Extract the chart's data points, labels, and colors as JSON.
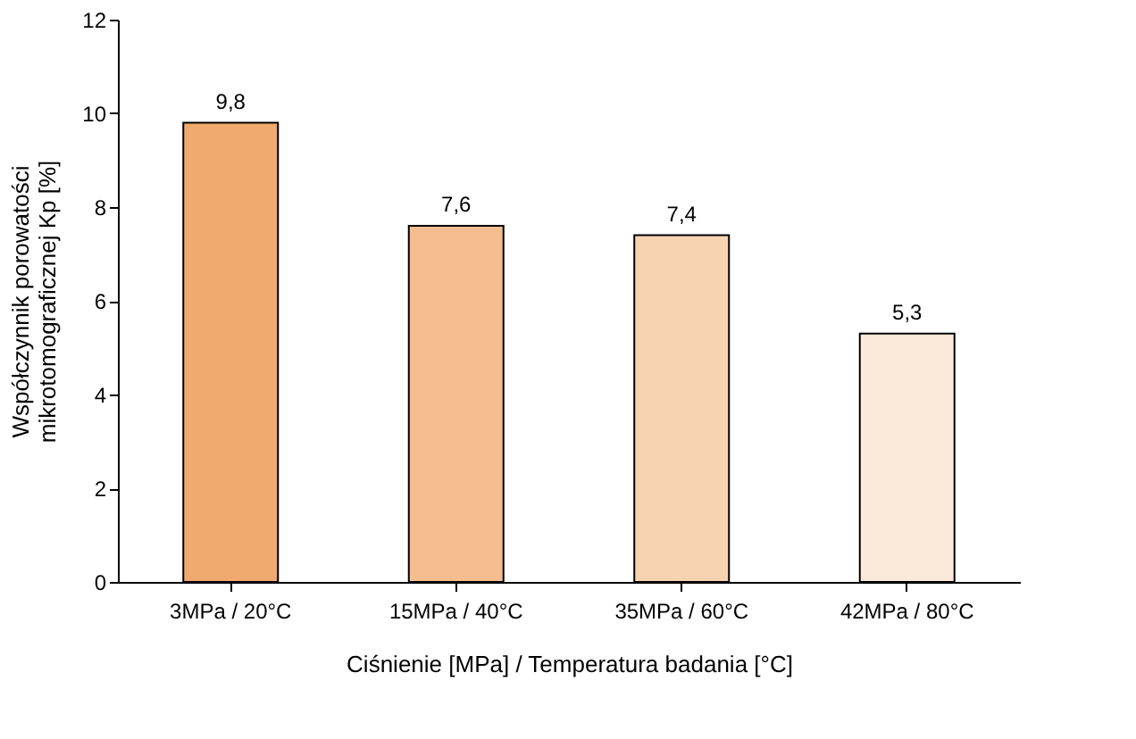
{
  "chart_data": {
    "type": "bar",
    "categories": [
      "3MPa / 20°C",
      "15MPa / 40°C",
      "35MPa / 60°C",
      "42MPa / 80°C"
    ],
    "values": [
      9.8,
      7.6,
      7.4,
      5.3
    ],
    "colors": [
      "#f0a96e",
      "#f4bd90",
      "#f8d3b2",
      "#fbe9d9"
    ],
    "value_labels": [
      "9,8",
      "7,6",
      "7,4",
      "5,3"
    ],
    "xlabel": "Ciśnienie [MPa] / Temperatura badania [°C]",
    "ylabel": "Współczynnik porowatości\nmikrotomograficznej Kp [%]",
    "ylim": [
      0,
      12
    ],
    "yticks": [
      0,
      2,
      4,
      6,
      8,
      10,
      12
    ],
    "grid": false
  }
}
